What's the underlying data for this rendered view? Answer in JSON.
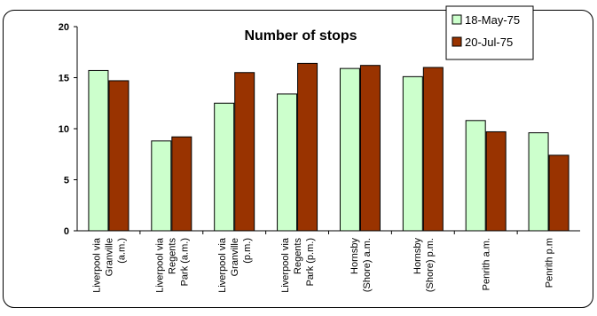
{
  "chart_data": {
    "type": "bar",
    "title": "Number of stops",
    "xlabel": "",
    "ylabel": "",
    "ylim": [
      0,
      20
    ],
    "yticks": [
      0,
      5,
      10,
      15,
      20
    ],
    "grid": false,
    "legend_position": "top-right",
    "categories": [
      [
        "Liverpool via",
        "Granville",
        "(a.m.)"
      ],
      [
        "Liverpool via",
        "Regents",
        "Park (a.m.)"
      ],
      [
        "Liverpool via",
        "Granville",
        "(p.m.)"
      ],
      [
        "Liverpool via",
        "Regents",
        "Park (p.m.)"
      ],
      [
        "Hornsby",
        "(Shore) a.m."
      ],
      [
        "Hornsby",
        "(Shore) p.m."
      ],
      [
        "Penrith a.m."
      ],
      [
        "Penrith p.m"
      ]
    ],
    "series": [
      {
        "name": "18-May-75",
        "color": "#ccffcc",
        "values": [
          15.7,
          8.8,
          12.5,
          13.4,
          15.9,
          15.1,
          10.8,
          9.6
        ]
      },
      {
        "name": "20-Jul-75",
        "color": "#993300",
        "values": [
          14.7,
          9.2,
          15.5,
          16.4,
          16.2,
          16.0,
          9.7,
          7.4
        ]
      }
    ]
  }
}
